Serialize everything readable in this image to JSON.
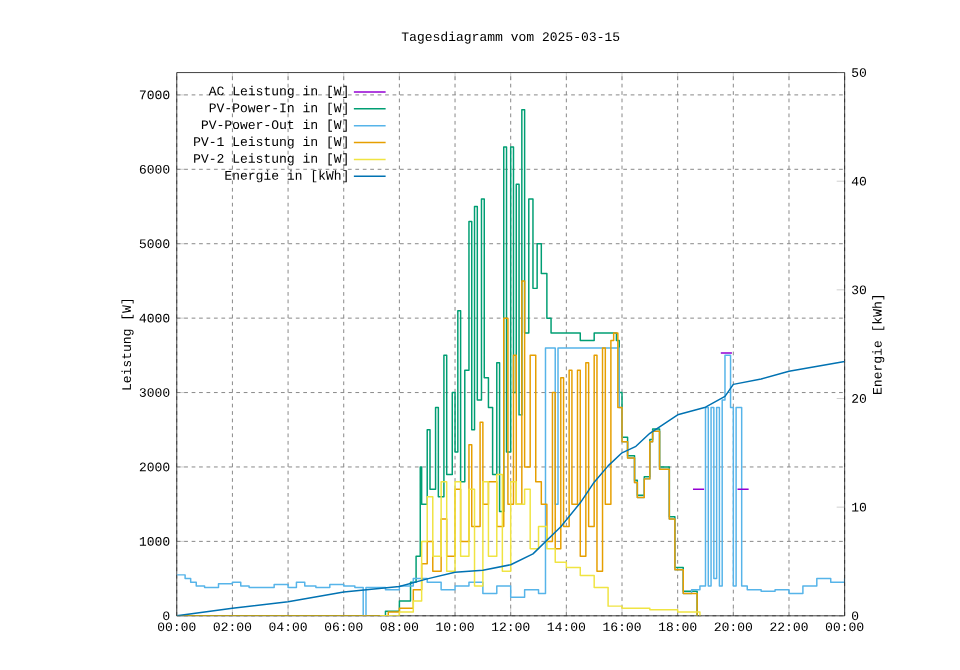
{
  "chart_data": {
    "type": "step",
    "title": "Tagesdiagramm vom 2025-03-15",
    "ylabel": "Leistung [W]",
    "y2label": "Energie [kWh]",
    "xlim": [
      0,
      24
    ],
    "xticks": [
      {
        "value": 0,
        "label": "00:00"
      },
      {
        "value": 2,
        "label": "02:00"
      },
      {
        "value": 4,
        "label": "04:00"
      },
      {
        "value": 6,
        "label": "06:00"
      },
      {
        "value": 8,
        "label": "08:00"
      },
      {
        "value": 10,
        "label": "10:00"
      },
      {
        "value": 12,
        "label": "12:00"
      },
      {
        "value": 14,
        "label": "14:00"
      },
      {
        "value": 16,
        "label": "16:00"
      },
      {
        "value": 18,
        "label": "18:00"
      },
      {
        "value": 20,
        "label": "20:00"
      },
      {
        "value": 22,
        "label": "22:00"
      },
      {
        "value": 24,
        "label": "00:00"
      }
    ],
    "ylim": [
      0,
      7300
    ],
    "yticks": [
      0,
      1000,
      2000,
      3000,
      4000,
      5000,
      6000,
      7000
    ],
    "y2lim": [
      0,
      50
    ],
    "y2ticks": [
      0,
      10,
      20,
      30,
      40,
      50
    ],
    "grid": true,
    "legend": "top left",
    "marker": "none",
    "line_style": "solid",
    "series": [
      {
        "name": "AC Leistung in [W]",
        "color": "#9400d3",
        "x": [
          18.55,
          18.95,
          19.0,
          19.55,
          19.95,
          20.0,
          20.15,
          20.55
        ],
        "values": [
          1700,
          1700,
          null,
          3530,
          3530,
          null,
          1700,
          1700
        ]
      },
      {
        "name": "PV-Power-In in [W]",
        "color": "#009e73",
        "x": [
          0,
          6.9,
          7.5,
          8.0,
          8.4,
          8.6,
          8.75,
          8.8,
          9.0,
          9.1,
          9.3,
          9.4,
          9.6,
          9.7,
          9.9,
          10.0,
          10.1,
          10.2,
          10.35,
          10.5,
          10.6,
          10.7,
          10.8,
          10.95,
          11.05,
          11.2,
          11.35,
          11.5,
          11.6,
          11.75,
          11.85,
          12.0,
          12.1,
          12.2,
          12.3,
          12.4,
          12.5,
          12.65,
          12.8,
          12.95,
          13.1,
          13.3,
          13.45,
          14.0,
          14.5,
          15.0,
          15.5,
          15.8,
          15.9,
          16.0,
          16.2,
          16.45,
          16.55,
          16.8,
          17.0,
          17.1,
          17.35,
          17.7,
          17.9,
          18.2,
          18.7
        ],
        "values": [
          0,
          0,
          60,
          200,
          450,
          800,
          2000,
          1500,
          2500,
          1700,
          2800,
          1600,
          3500,
          1900,
          3000,
          2200,
          4100,
          1800,
          3300,
          5300,
          2500,
          5500,
          2900,
          5600,
          3200,
          2800,
          1900,
          3400,
          1400,
          6300,
          2200,
          6300,
          3000,
          5800,
          2700,
          6800,
          3800,
          5600,
          4400,
          5000,
          4600,
          4000,
          3800,
          3800,
          3700,
          3800,
          3800,
          3700,
          3000,
          2400,
          2150,
          1820,
          1620,
          1870,
          2370,
          2510,
          2000,
          1330,
          650,
          330,
          0
        ]
      },
      {
        "name": "PV-Power-Out in [W]",
        "color": "#56b4e9",
        "x": [
          0,
          0.3,
          0.5,
          0.7,
          1.0,
          1.5,
          2.0,
          2.3,
          2.6,
          3.0,
          3.5,
          4.0,
          4.3,
          4.6,
          5.0,
          5.5,
          6.0,
          6.4,
          6.7,
          6.8,
          7.5,
          8.0,
          8.5,
          9.0,
          9.5,
          10.0,
          10.5,
          11.0,
          11.5,
          12.0,
          12.5,
          13.0,
          13.25,
          13.6,
          13.7,
          14.5,
          15.0,
          15.5,
          15.8,
          15.9,
          16.0,
          16.2,
          16.45,
          16.55,
          16.8,
          17.0,
          17.1,
          17.35,
          17.7,
          17.9,
          18.2,
          18.5,
          18.8,
          19.0,
          19.1,
          19.2,
          19.3,
          19.4,
          19.5,
          19.6,
          19.7,
          19.9,
          20.0,
          20.1,
          20.3,
          20.5,
          21.0,
          21.5,
          22.0,
          22.5,
          23.0,
          23.5,
          24.0
        ],
        "values": [
          550,
          500,
          450,
          400,
          380,
          430,
          450,
          400,
          380,
          380,
          420,
          380,
          450,
          400,
          380,
          420,
          400,
          380,
          0,
          380,
          350,
          400,
          500,
          450,
          350,
          400,
          450,
          300,
          400,
          250,
          350,
          300,
          3600,
          1500,
          3600,
          3600,
          3600,
          3600,
          3600,
          2800,
          2340,
          2120,
          1790,
          1590,
          1840,
          2340,
          2480,
          1970,
          1300,
          620,
          300,
          350,
          400,
          2800,
          400,
          2800,
          500,
          2800,
          400,
          2900,
          3500,
          2800,
          400,
          2800,
          400,
          350,
          330,
          350,
          300,
          400,
          500,
          450,
          500
        ]
      },
      {
        "name": "PV-1 Leistung in [W]",
        "color": "#e69f00",
        "x": [
          0,
          7.2,
          7.6,
          8.0,
          8.5,
          8.8,
          9.0,
          9.2,
          9.5,
          9.7,
          10.0,
          10.2,
          10.5,
          10.6,
          10.9,
          11.0,
          11.2,
          11.5,
          11.75,
          11.9,
          12.1,
          12.2,
          12.4,
          12.5,
          12.7,
          12.9,
          13.1,
          13.3,
          13.5,
          13.6,
          13.8,
          13.9,
          14.1,
          14.2,
          14.4,
          14.5,
          14.7,
          14.8,
          15.0,
          15.1,
          15.3,
          15.4,
          15.6,
          15.7,
          15.85,
          16.0,
          16.2,
          16.45,
          16.55,
          16.8,
          17.0,
          17.1,
          17.35,
          17.7,
          17.9,
          18.2,
          18.7
        ],
        "values": [
          0,
          0,
          50,
          100,
          350,
          700,
          1000,
          600,
          1300,
          800,
          1700,
          1000,
          2300,
          1200,
          2600,
          1500,
          1800,
          1200,
          4000,
          1500,
          3500,
          1500,
          4500,
          2000,
          3500,
          1800,
          1500,
          1000,
          3000,
          900,
          3200,
          1200,
          3300,
          1500,
          3300,
          800,
          3400,
          1200,
          3500,
          600,
          3600,
          1500,
          3700,
          3800,
          2800,
          2340,
          2120,
          1790,
          1590,
          1840,
          2340,
          2480,
          1970,
          1300,
          620,
          300,
          0
        ]
      },
      {
        "name": "PV-2 Leistung in [W]",
        "color": "#f0e442",
        "x": [
          7.3,
          8.0,
          8.5,
          8.8,
          9.0,
          9.2,
          9.5,
          9.7,
          10.0,
          10.2,
          10.5,
          10.7,
          11.0,
          11.2,
          11.5,
          11.7,
          12.0,
          12.2,
          12.5,
          12.7,
          13.0,
          13.3,
          13.6,
          14.0,
          14.5,
          15.0,
          15.5,
          16.0,
          17.0,
          18.0,
          18.8
        ],
        "values": [
          0,
          50,
          200,
          1000,
          1600,
          800,
          1800,
          600,
          1800,
          800,
          1700,
          400,
          1800,
          800,
          1900,
          600,
          1800,
          1500,
          1700,
          900,
          1200,
          900,
          720,
          650,
          540,
          380,
          130,
          100,
          80,
          50,
          0
        ]
      },
      {
        "name": "Energie in [kWh]",
        "type": "line",
        "axis": "y2",
        "color": "#0072b2",
        "x": [
          0,
          2,
          4,
          6,
          8,
          9,
          10,
          11,
          12,
          12.8,
          13.8,
          14.5,
          15,
          15.5,
          16,
          16.5,
          17,
          18,
          19,
          19.7,
          20,
          21,
          22,
          24
        ],
        "values": [
          0,
          0.7,
          1.3,
          2.2,
          2.7,
          3.4,
          4.0,
          4.2,
          4.7,
          5.7,
          8.2,
          10.4,
          12.3,
          13.8,
          15,
          15.6,
          16.8,
          18.5,
          19.2,
          20.2,
          21.3,
          21.8,
          22.5,
          23.4
        ]
      }
    ]
  }
}
